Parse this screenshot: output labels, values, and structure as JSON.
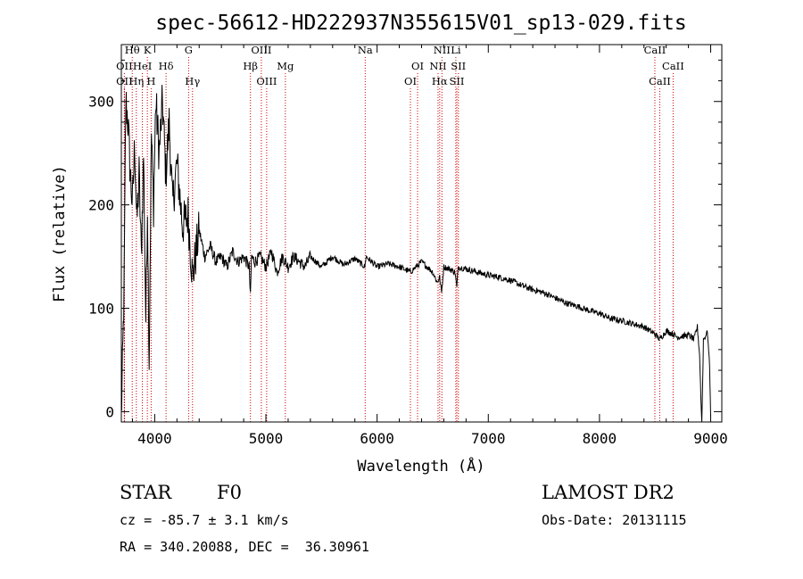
{
  "chart_data": {
    "type": "line",
    "title": "spec-56612-HD222937N355615V01_sp13-029.fits",
    "xlabel": "Wavelength (Å)",
    "ylabel": "Flux (relative)",
    "xlim": [
      3700,
      9100
    ],
    "ylim": [
      -10,
      355
    ],
    "xticks": [
      4000,
      5000,
      6000,
      7000,
      8000,
      9000
    ],
    "yticks": [
      0,
      100,
      200,
      300
    ],
    "series": [
      {
        "name": "flux",
        "x": [
          3700,
          3710,
          3725,
          3740,
          3760,
          3780,
          3800,
          3820,
          3840,
          3860,
          3880,
          3900,
          3920,
          3935,
          3950,
          3970,
          3990,
          4010,
          4040,
          4070,
          4100,
          4130,
          4160,
          4200,
          4250,
          4300,
          4340,
          4400,
          4450,
          4500,
          4550,
          4600,
          4650,
          4700,
          4750,
          4800,
          4850,
          4861,
          4870,
          4900,
          4950,
          5000,
          5050,
          5100,
          5150,
          5200,
          5250,
          5300,
          5350,
          5400,
          5500,
          5600,
          5700,
          5800,
          5890,
          5900,
          6000,
          6100,
          6200,
          6300,
          6400,
          6500,
          6540,
          6563,
          6580,
          6600,
          6650,
          6700,
          6717,
          6730,
          6800,
          6900,
          7000,
          7100,
          7200,
          7300,
          7400,
          7500,
          7600,
          7700,
          7800,
          7900,
          8000,
          8100,
          8200,
          8300,
          8400,
          8498,
          8542,
          8600,
          8662,
          8700,
          8800,
          8850,
          8880,
          8900,
          8920,
          8935,
          8950,
          8970,
          8990,
          9000
        ],
        "values": [
          -5,
          40,
          120,
          300,
          280,
          230,
          200,
          260,
          180,
          230,
          150,
          250,
          90,
          200,
          50,
          270,
          200,
          300,
          250,
          300,
          230,
          280,
          200,
          240,
          180,
          190,
          130,
          175,
          150,
          160,
          145,
          150,
          140,
          155,
          145,
          150,
          140,
          110,
          150,
          145,
          150,
          140,
          155,
          135,
          150,
          140,
          150,
          145,
          140,
          150,
          140,
          150,
          142,
          148,
          140,
          150,
          140,
          143,
          140,
          135,
          145,
          135,
          125,
          130,
          115,
          140,
          138,
          135,
          120,
          140,
          138,
          135,
          132,
          130,
          127,
          122,
          118,
          115,
          110,
          105,
          102,
          98,
          95,
          90,
          88,
          85,
          82,
          75,
          70,
          78,
          75,
          72,
          74,
          70,
          82,
          55,
          -15,
          70,
          72,
          78,
          45,
          -5
        ]
      }
    ],
    "spectral_lines": [
      {
        "label": "Hθ",
        "x": 3798,
        "row": 1
      },
      {
        "label": "K",
        "x": 3934,
        "row": 1
      },
      {
        "label": "G",
        "x": 4305,
        "row": 1
      },
      {
        "label": "OIII",
        "x": 4959,
        "row": 1
      },
      {
        "label": "Na",
        "x": 5893,
        "row": 1
      },
      {
        "label": "NII",
        "x": 6583,
        "row": 1
      },
      {
        "label": "Li",
        "x": 6708,
        "row": 1
      },
      {
        "label": "CaII",
        "x": 8498,
        "row": 1
      },
      {
        "label": "OII",
        "x": 3727,
        "row": 2
      },
      {
        "label": "HeI",
        "x": 3889,
        "row": 2
      },
      {
        "label": "Hδ",
        "x": 4102,
        "row": 2
      },
      {
        "label": "Hβ",
        "x": 4861,
        "row": 2
      },
      {
        "label": "Mg",
        "x": 5175,
        "row": 2
      },
      {
        "label": "OI",
        "x": 6364,
        "row": 2
      },
      {
        "label": "NII",
        "x": 6548,
        "row": 2
      },
      {
        "label": "SII",
        "x": 6731,
        "row": 2
      },
      {
        "label": "CaII",
        "x": 8662,
        "row": 2
      },
      {
        "label": "OII",
        "x": 3727,
        "row": 3
      },
      {
        "label": "Hη",
        "x": 3835,
        "row": 3
      },
      {
        "label": "H",
        "x": 3968,
        "row": 3
      },
      {
        "label": "Hγ",
        "x": 4340,
        "row": 3
      },
      {
        "label": "OIII",
        "x": 5007,
        "row": 3
      },
      {
        "label": "OI",
        "x": 6300,
        "row": 3
      },
      {
        "label": "Hα",
        "x": 6563,
        "row": 3
      },
      {
        "label": "SII",
        "x": 6717,
        "row": 3
      },
      {
        "label": "CaII",
        "x": 8542,
        "row": 3
      }
    ],
    "line_color": "#000000",
    "marker_color": "#cc0000"
  },
  "info": {
    "object_type": "STAR",
    "subclass": "F0",
    "survey": "LAMOST DR2",
    "cz": "cz = -85.7 ± 3.1 km/s",
    "obs_date": "Obs-Date: 20131115",
    "coords": "RA = 340.20088, DEC =  36.30961"
  }
}
